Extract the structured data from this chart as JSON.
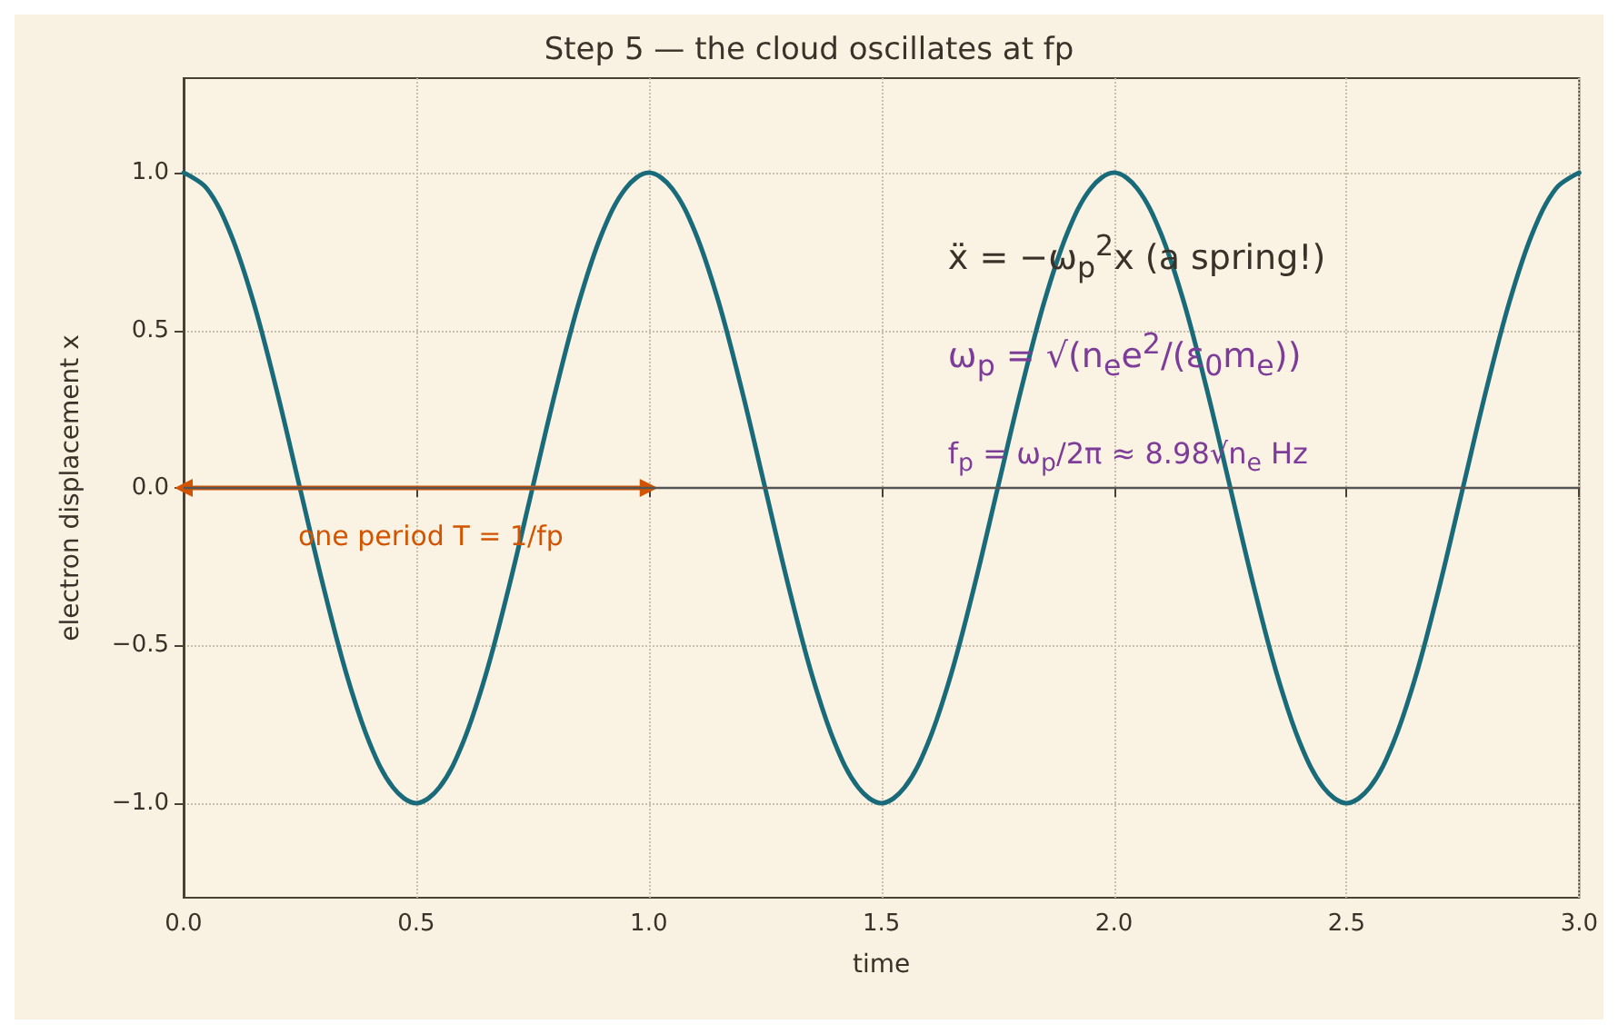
{
  "chart_data": {
    "type": "line",
    "title": "Step 5 — the cloud oscillates at fp",
    "xlabel": "time",
    "ylabel": "electron displacement x",
    "xlim": [
      0,
      3
    ],
    "ylim": [
      -1.3,
      1.3
    ],
    "xticks": [
      {
        "value": 0,
        "label": "0.0"
      },
      {
        "value": 0.5,
        "label": "0.5"
      },
      {
        "value": 1,
        "label": "1.0"
      },
      {
        "value": 1.5,
        "label": "1.5"
      },
      {
        "value": 2,
        "label": "2.0"
      },
      {
        "value": 2.5,
        "label": "2.5"
      },
      {
        "value": 3,
        "label": "3.0"
      }
    ],
    "yticks": [
      {
        "value": -1,
        "label": "−1.0"
      },
      {
        "value": -0.5,
        "label": "−0.5"
      },
      {
        "value": 0,
        "label": "0.0"
      },
      {
        "value": 0.5,
        "label": "0.5"
      },
      {
        "value": 1,
        "label": "1.0"
      }
    ],
    "grid": true,
    "marker": "none",
    "line_style": "solid",
    "series": [
      {
        "color": "#1a6b7a",
        "x": [
          0,
          0.05,
          0.1,
          0.15,
          0.2,
          0.25,
          0.3,
          0.35,
          0.4,
          0.45,
          0.5,
          0.55,
          0.6,
          0.65,
          0.7,
          0.75,
          0.8,
          0.85,
          0.9,
          0.95,
          1,
          1.05,
          1.1,
          1.15,
          1.2,
          1.25,
          1.3,
          1.35,
          1.4,
          1.45,
          1.5,
          1.55,
          1.6,
          1.65,
          1.7,
          1.75,
          1.8,
          1.85,
          1.9,
          1.95,
          2,
          2.05,
          2.1,
          2.15,
          2.2,
          2.25,
          2.3,
          2.35,
          2.4,
          2.45,
          2.5,
          2.55,
          2.6,
          2.65,
          2.7,
          2.75,
          2.8,
          2.85,
          2.9,
          2.95,
          3
        ],
        "values": [
          1,
          0.95,
          0.81,
          0.59,
          0.31,
          0,
          -0.31,
          -0.59,
          -0.81,
          -0.95,
          -1,
          -0.95,
          -0.81,
          -0.59,
          -0.31,
          0,
          0.31,
          0.59,
          0.81,
          0.95,
          1,
          0.95,
          0.81,
          0.59,
          0.31,
          0,
          -0.31,
          -0.59,
          -0.81,
          -0.95,
          -1,
          -0.95,
          -0.81,
          -0.59,
          -0.31,
          0,
          0.31,
          0.59,
          0.81,
          0.95,
          1,
          0.95,
          0.81,
          0.59,
          0.31,
          0,
          -0.31,
          -0.59,
          -0.81,
          -0.95,
          -1,
          -0.95,
          -0.81,
          -0.59,
          -0.31,
          0,
          0.31,
          0.59,
          0.81,
          0.95,
          1
        ]
      },
      {
        "color": "#d35400",
        "x": [
          0,
          1
        ],
        "values": [
          0,
          0
        ],
        "marker": "triangle"
      }
    ],
    "ref_lines": [
      {
        "axis": "y",
        "value": 0,
        "color": "#555555"
      }
    ],
    "annotations": [
      "ẍ = −ω$_{p}$$^{2}$x  (a spring!)",
      "ω$_{p}$ = √(n$_{e}$e$^{2}$/(ε$_{0}$m$_{e}$))",
      "f$_{p}$ = ω$_{p}$/2π ≈ 8.98√n$_{e}$ Hz",
      {
        "text": "one period T = 1/fp",
        "x": 0.5,
        "y": 0
      }
    ]
  }
}
